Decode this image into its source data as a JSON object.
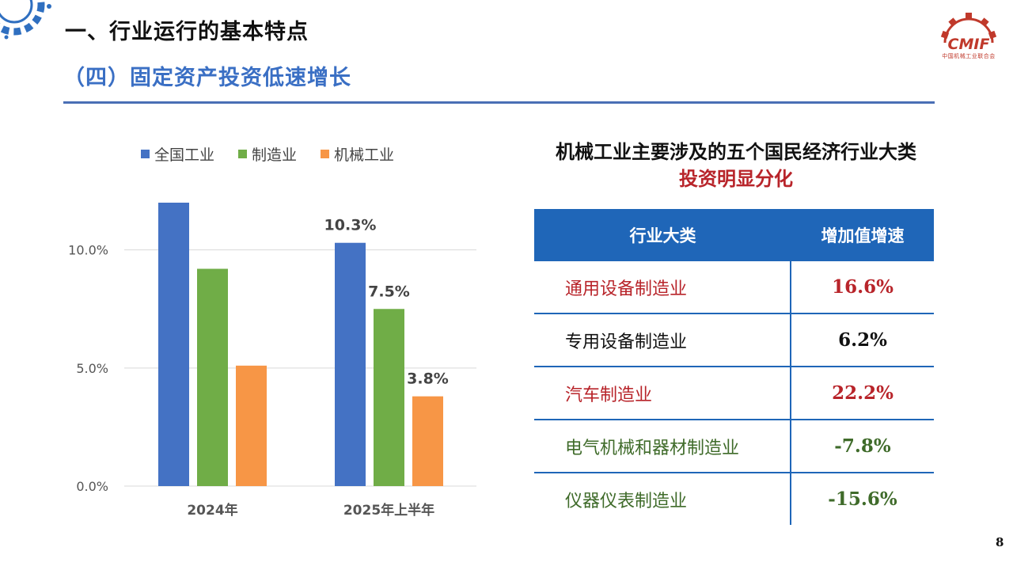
{
  "header": {
    "title": "一、行业运行的基本特点",
    "subtitle": "（四）固定资产投资低速增长"
  },
  "logo": {
    "name": "CMIF",
    "org": "中国机械工业联合会"
  },
  "colors": {
    "accent_blue": "#4a6fb5",
    "series_national": "#4472c4",
    "series_manufacturing": "#70ad47",
    "series_machinery": "#f79646",
    "table_header": "#1f66b8",
    "highlight_red": "#b8242a",
    "negative_green": "#3f6b2a"
  },
  "chart_data": {
    "type": "bar",
    "categories": [
      "2024年",
      "2025年上半年"
    ],
    "series": [
      {
        "name": "全国工业",
        "values": [
          12.0,
          10.3
        ],
        "labels": [
          "",
          "10.3%"
        ]
      },
      {
        "name": "制造业",
        "values": [
          9.2,
          7.5
        ],
        "labels": [
          "",
          "7.5%"
        ]
      },
      {
        "name": "机械工业",
        "values": [
          5.1,
          3.8
        ],
        "labels": [
          "",
          "3.8%"
        ]
      }
    ],
    "yticks": [
      "0.0%",
      "5.0%",
      "10.0%"
    ],
    "ylim": [
      0,
      12
    ],
    "legend": "top",
    "grid": true
  },
  "table": {
    "title": "机械工业主要涉及的五个国民经济行业大类",
    "subtitle": "投资明显分化",
    "headers": [
      "行业大类",
      "增加值增速"
    ],
    "rows": [
      {
        "industry": "通用设备制造业",
        "growth": "16.6%",
        "tone": "red"
      },
      {
        "industry": "专用设备制造业",
        "growth": "6.2%",
        "tone": "dark"
      },
      {
        "industry": "汽车制造业",
        "growth": "22.2%",
        "tone": "red"
      },
      {
        "industry": "电气机械和器材制造业",
        "growth": "-7.8%",
        "tone": "green"
      },
      {
        "industry": "仪器仪表制造业",
        "growth": "-15.6%",
        "tone": "green"
      }
    ]
  },
  "page_number": "8"
}
